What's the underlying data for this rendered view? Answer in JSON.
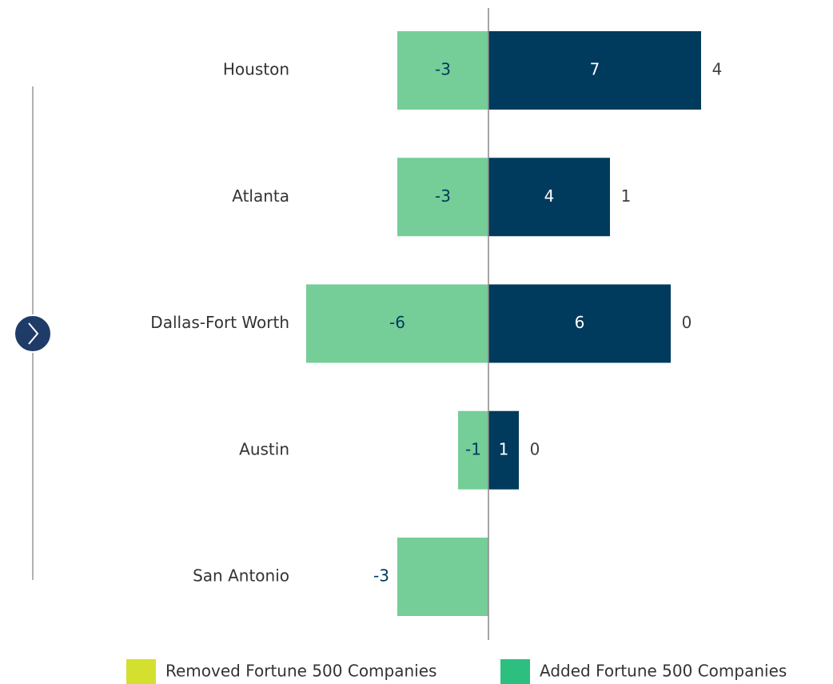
{
  "chart_data": {
    "type": "diverging-bar",
    "categories": [
      "Houston",
      "Atlanta",
      "Dallas-Fort Worth",
      "Austin",
      "San Antonio"
    ],
    "series": [
      {
        "name": "Removed Fortune 500 Companies",
        "color": "#75cd98",
        "legend_color": "#d4e02f",
        "label_color": "#003a5c",
        "values": [
          -3,
          -3,
          -6,
          -1,
          -3
        ],
        "value_labels": [
          "-3",
          "-3",
          "-6",
          "-1",
          null
        ]
      },
      {
        "name": "Added Fortune 500 Companies",
        "color": "#003a5c",
        "legend_color": "#2dbf7f",
        "label_color": "#ffffff",
        "values": [
          7,
          4,
          6,
          1,
          0
        ],
        "value_labels": [
          "7",
          "4",
          "6",
          "1",
          null
        ]
      }
    ],
    "totals": [
      4,
      1,
      0,
      0,
      -3
    ],
    "xlim": [
      -6,
      7
    ]
  }
}
